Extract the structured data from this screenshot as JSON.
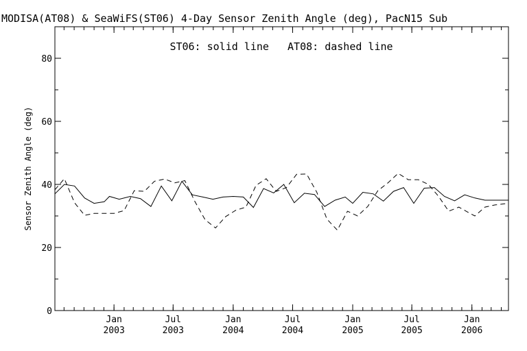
{
  "chart_data": {
    "type": "line",
    "title": "MODISA(AT08) & SeaWiFS(ST06) 4-Day Sensor Zenith Angle (deg), PacN15 Sub",
    "ylabel": "Sensor Zenith Angle (deg)",
    "xlabel": "",
    "annotation": "ST06: solid line   AT08: dashed line",
    "ylim": [
      0,
      90
    ],
    "xlim": [
      "2002-07-04",
      "2006-04-23"
    ],
    "yticks": [
      0,
      20,
      40,
      60,
      80
    ],
    "xticks": [
      {
        "date": "2003-01-01",
        "line1": "Jan",
        "line2": "2003"
      },
      {
        "date": "2003-07-01",
        "line1": "Jul",
        "line2": "2003"
      },
      {
        "date": "2004-01-01",
        "line1": "Jan",
        "line2": "2004"
      },
      {
        "date": "2004-07-01",
        "line1": "Jul",
        "line2": "2004"
      },
      {
        "date": "2005-01-01",
        "line1": "Jan",
        "line2": "2005"
      },
      {
        "date": "2005-07-01",
        "line1": "Jul",
        "line2": "2005"
      },
      {
        "date": "2006-01-01",
        "line1": "Jan",
        "line2": "2006"
      }
    ],
    "grid": false,
    "series": [
      {
        "name": "ST06",
        "style": "solid",
        "color": "#000000",
        "points": [
          [
            "2002-07-04",
            37.0
          ],
          [
            "2002-08-02",
            40.0
          ],
          [
            "2002-09-02",
            39.5
          ],
          [
            "2002-10-03",
            35.7
          ],
          [
            "2002-11-01",
            34.0
          ],
          [
            "2002-12-02",
            34.5
          ],
          [
            "2002-12-18",
            36.2
          ],
          [
            "2003-01-17",
            35.3
          ],
          [
            "2003-02-20",
            36.2
          ],
          [
            "2003-03-23",
            35.5
          ],
          [
            "2003-04-24",
            33.0
          ],
          [
            "2003-05-26",
            39.5
          ],
          [
            "2003-06-27",
            34.8
          ],
          [
            "2003-07-28",
            41.0
          ],
          [
            "2003-08-29",
            36.7
          ],
          [
            "2003-09-30",
            36.0
          ],
          [
            "2003-10-31",
            35.3
          ],
          [
            "2003-12-01",
            36.0
          ],
          [
            "2004-01-01",
            36.2
          ],
          [
            "2004-02-01",
            36.0
          ],
          [
            "2004-03-03",
            32.7
          ],
          [
            "2004-04-03",
            38.7
          ],
          [
            "2004-05-04",
            37.3
          ],
          [
            "2004-06-04",
            40.0
          ],
          [
            "2004-07-06",
            34.2
          ],
          [
            "2004-08-06",
            37.2
          ],
          [
            "2004-09-06",
            36.8
          ],
          [
            "2004-10-07",
            33.0
          ],
          [
            "2004-11-08",
            35.0
          ],
          [
            "2004-12-09",
            36.0
          ],
          [
            "2005-01-01",
            34.0
          ],
          [
            "2005-02-01",
            37.5
          ],
          [
            "2005-03-05",
            37.0
          ],
          [
            "2005-04-05",
            34.7
          ],
          [
            "2005-05-06",
            37.8
          ],
          [
            "2005-06-06",
            39.0
          ],
          [
            "2005-07-07",
            34.0
          ],
          [
            "2005-08-08",
            38.8
          ],
          [
            "2005-09-08",
            39.0
          ],
          [
            "2005-10-09",
            36.2
          ],
          [
            "2005-11-09",
            34.8
          ],
          [
            "2005-12-10",
            36.7
          ],
          [
            "2006-01-10",
            35.7
          ],
          [
            "2006-02-10",
            35.0
          ],
          [
            "2006-03-13",
            35.0
          ],
          [
            "2006-04-23",
            35.0
          ]
        ]
      },
      {
        "name": "AT08",
        "style": "dashed",
        "color": "#000000",
        "points": [
          [
            "2002-07-04",
            38.3
          ],
          [
            "2002-08-02",
            41.8
          ],
          [
            "2002-09-02",
            34.2
          ],
          [
            "2002-10-03",
            30.2
          ],
          [
            "2002-11-01",
            30.8
          ],
          [
            "2002-12-02",
            30.8
          ],
          [
            "2003-01-01",
            30.8
          ],
          [
            "2003-02-01",
            31.7
          ],
          [
            "2003-03-04",
            38.0
          ],
          [
            "2003-04-04",
            37.8
          ],
          [
            "2003-05-05",
            41.0
          ],
          [
            "2003-06-05",
            41.7
          ],
          [
            "2003-07-06",
            40.5
          ],
          [
            "2003-08-06",
            41.2
          ],
          [
            "2003-09-06",
            34.5
          ],
          [
            "2003-10-07",
            28.8
          ],
          [
            "2003-11-08",
            26.2
          ],
          [
            "2003-12-09",
            29.8
          ],
          [
            "2004-01-09",
            31.8
          ],
          [
            "2004-02-09",
            32.8
          ],
          [
            "2004-03-11",
            39.7
          ],
          [
            "2004-04-11",
            41.8
          ],
          [
            "2004-05-12",
            37.8
          ],
          [
            "2004-06-12",
            39.0
          ],
          [
            "2004-07-13",
            43.2
          ],
          [
            "2004-08-13",
            43.3
          ],
          [
            "2004-09-13",
            37.5
          ],
          [
            "2004-10-14",
            29.0
          ],
          [
            "2004-11-15",
            25.5
          ],
          [
            "2004-12-16",
            31.5
          ],
          [
            "2005-01-16",
            30.0
          ],
          [
            "2005-02-16",
            33.0
          ],
          [
            "2005-03-19",
            38.0
          ],
          [
            "2005-04-19",
            40.5
          ],
          [
            "2005-05-20",
            43.5
          ],
          [
            "2005-06-20",
            41.5
          ],
          [
            "2005-07-21",
            41.5
          ],
          [
            "2005-08-21",
            40.0
          ],
          [
            "2005-09-21",
            36.2
          ],
          [
            "2005-10-22",
            31.5
          ],
          [
            "2005-11-22",
            32.8
          ],
          [
            "2005-12-23",
            31.0
          ],
          [
            "2006-01-10",
            30.0
          ],
          [
            "2006-02-10",
            32.8
          ],
          [
            "2006-03-13",
            33.5
          ],
          [
            "2006-04-23",
            34.0
          ]
        ]
      }
    ]
  }
}
